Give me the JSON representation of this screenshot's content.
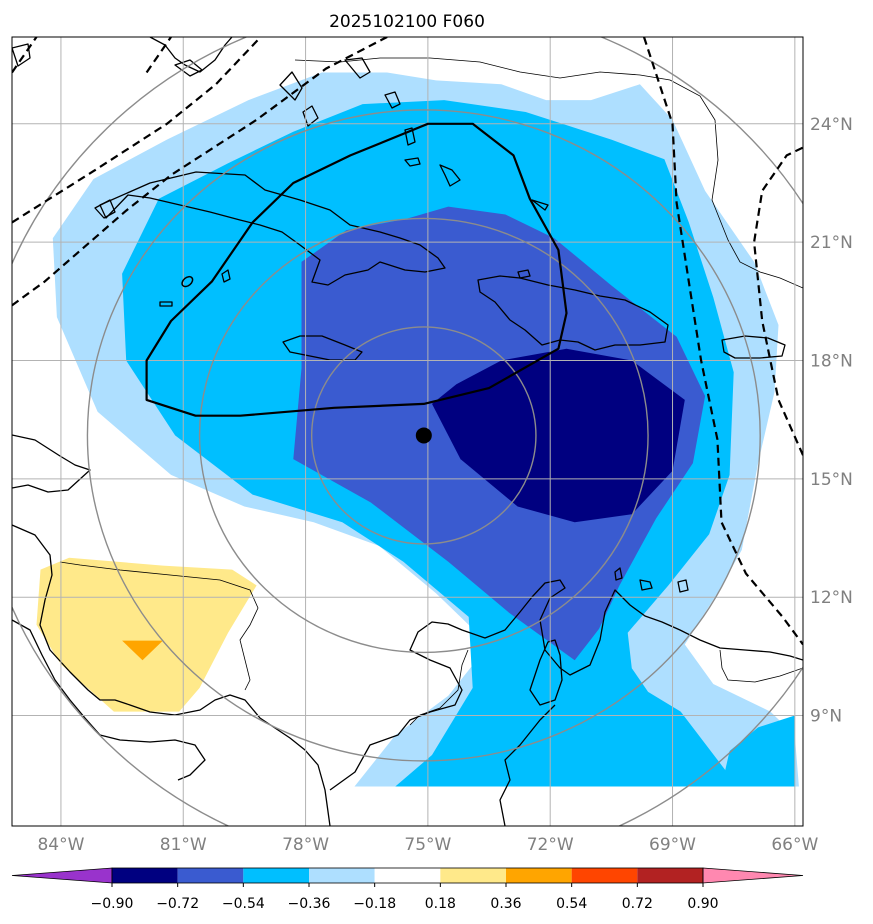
{
  "chart_data": {
    "type": "map-contour",
    "title": "2025102100 F060",
    "projection": "lat-lon",
    "extent": {
      "lon": [
        -85.2,
        -65.8
      ],
      "lat": [
        6.2,
        26.2
      ]
    },
    "grid": true,
    "x_ticks": [
      {
        "value": -84,
        "label": "84°W"
      },
      {
        "value": -81,
        "label": "81°W"
      },
      {
        "value": -78,
        "label": "78°W"
      },
      {
        "value": -75,
        "label": "75°W"
      },
      {
        "value": -72,
        "label": "72°W"
      },
      {
        "value": -69,
        "label": "69°W"
      },
      {
        "value": -66,
        "label": "66°W"
      }
    ],
    "y_ticks": [
      {
        "value": 9,
        "label": "9°N"
      },
      {
        "value": 12,
        "label": "12°N"
      },
      {
        "value": 15,
        "label": "15°N"
      },
      {
        "value": 18,
        "label": "18°N"
      },
      {
        "value": 21,
        "label": "21°N"
      },
      {
        "value": 24,
        "label": "24°N"
      }
    ],
    "center_point": {
      "lon": -75.1,
      "lat": 16.1
    },
    "range_rings": {
      "center": {
        "lon": -75.1,
        "lat": 16.1
      },
      "radii_deg": [
        2.75,
        5.5,
        8.25,
        11.0
      ],
      "color": "#8c8c8c"
    },
    "colorbar": {
      "levels": [
        "-0.90",
        "-0.72",
        "-0.54",
        "-0.36",
        "-0.18",
        "0.18",
        "0.36",
        "0.54",
        "0.72",
        "0.90"
      ],
      "colors": [
        "#9933cc",
        "#000080",
        "#3a5bd0",
        "#00bfff",
        "#aedfff",
        "#ffffff",
        "#ffe98a",
        "#ffa500",
        "#ff4500",
        "#b22222",
        "#ff88b0"
      ],
      "extend": "both"
    },
    "contour_regions": [
      {
        "level": "-0.36 to -0.18",
        "color": "#aedfff",
        "polygon": [
          [
            -76.8,
            7.2
          ],
          [
            -75.8,
            8.5
          ],
          [
            -74.5,
            9.5
          ],
          [
            -73.5,
            10.8
          ],
          [
            -74.8,
            12.1
          ],
          [
            -76.2,
            13.3
          ],
          [
            -77.8,
            13.9
          ],
          [
            -79.5,
            14.3
          ],
          [
            -81.3,
            15.1
          ],
          [
            -83.1,
            16.7
          ],
          [
            -84.1,
            19.1
          ],
          [
            -84.2,
            21.1
          ],
          [
            -83.2,
            22.6
          ],
          [
            -81.4,
            23.6
          ],
          [
            -79.4,
            24.6
          ],
          [
            -77.6,
            25.3
          ],
          [
            -76.0,
            25.3
          ],
          [
            -74.8,
            25.1
          ],
          [
            -73.2,
            25.0
          ],
          [
            -72.1,
            24.6
          ],
          [
            -71.0,
            24.6
          ],
          [
            -69.8,
            25.0
          ],
          [
            -69.0,
            24.1
          ],
          [
            -68.2,
            22.3
          ],
          [
            -67.0,
            20.5
          ],
          [
            -66.4,
            18.9
          ],
          [
            -66.5,
            17.2
          ],
          [
            -66.9,
            15.4
          ],
          [
            -67.3,
            13.2
          ],
          [
            -67.9,
            12.1
          ],
          [
            -68.7,
            10.8
          ],
          [
            -68.0,
            9.8
          ],
          [
            -66.6,
            9.1
          ],
          [
            -66.0,
            8.5
          ],
          [
            -65.9,
            7.2
          ]
        ]
      },
      {
        "level": "-0.54 to -0.36",
        "color": "#00bfff",
        "polygon": [
          [
            -75.8,
            7.2
          ],
          [
            -74.9,
            8.0
          ],
          [
            -73.9,
            9.7
          ],
          [
            -74.0,
            11.5
          ],
          [
            -75.6,
            12.9
          ],
          [
            -77.1,
            13.9
          ],
          [
            -79.3,
            14.6
          ],
          [
            -81.2,
            16.1
          ],
          [
            -82.4,
            18.0
          ],
          [
            -82.5,
            20.2
          ],
          [
            -81.6,
            22.1
          ],
          [
            -79.9,
            23.0
          ],
          [
            -78.3,
            23.8
          ],
          [
            -76.6,
            24.5
          ],
          [
            -74.6,
            24.6
          ],
          [
            -72.6,
            24.3
          ],
          [
            -70.5,
            23.6
          ],
          [
            -69.2,
            23.1
          ],
          [
            -68.6,
            21.5
          ],
          [
            -68.0,
            19.6
          ],
          [
            -67.5,
            17.7
          ],
          [
            -67.6,
            15.1
          ],
          [
            -68.1,
            13.6
          ],
          [
            -69.1,
            12.3
          ],
          [
            -70.1,
            11.1
          ],
          [
            -70.0,
            10.2
          ],
          [
            -69.6,
            9.6
          ],
          [
            -68.8,
            9.1
          ],
          [
            -67.4,
            7.2
          ]
        ]
      },
      {
        "level": "-0.54 to -0.36",
        "color": "#00bfff",
        "polygon": [
          [
            -66.0,
            7.2
          ],
          [
            -66.0,
            9.0
          ],
          [
            -66.9,
            8.7
          ],
          [
            -67.6,
            8.1
          ],
          [
            -67.8,
            7.2
          ]
        ]
      },
      {
        "level": "-0.72 to -0.54",
        "color": "#3a5bd0",
        "polygon": [
          [
            -71.4,
            10.4
          ],
          [
            -73.0,
            11.6
          ],
          [
            -74.5,
            12.9
          ],
          [
            -76.4,
            14.4
          ],
          [
            -78.3,
            15.5
          ],
          [
            -78.1,
            17.8
          ],
          [
            -78.1,
            20.5
          ],
          [
            -77.0,
            21.3
          ],
          [
            -75.5,
            21.6
          ],
          [
            -74.5,
            21.9
          ],
          [
            -73.1,
            21.7
          ],
          [
            -71.9,
            21.1
          ],
          [
            -70.5,
            19.9
          ],
          [
            -68.9,
            18.6
          ],
          [
            -68.2,
            17.1
          ],
          [
            -68.5,
            15.4
          ],
          [
            -69.4,
            14.0
          ],
          [
            -70.3,
            12.3
          ],
          [
            -70.8,
            11.2
          ]
        ]
      },
      {
        "level": "< -0.72",
        "color": "#000080",
        "polygon": [
          [
            -74.9,
            16.9
          ],
          [
            -74.3,
            17.4
          ],
          [
            -73.2,
            18.0
          ],
          [
            -71.6,
            18.3
          ],
          [
            -70.0,
            18.0
          ],
          [
            -68.7,
            17.0
          ],
          [
            -69.0,
            15.2
          ],
          [
            -70.0,
            14.1
          ],
          [
            -71.4,
            13.9
          ],
          [
            -72.8,
            14.3
          ],
          [
            -74.2,
            15.5
          ]
        ]
      },
      {
        "level": "0.18 to 0.36",
        "color": "#ffe98a",
        "polygon": [
          [
            -84.5,
            12.7
          ],
          [
            -83.8,
            13.0
          ],
          [
            -81.5,
            12.8
          ],
          [
            -79.8,
            12.7
          ],
          [
            -79.2,
            12.3
          ],
          [
            -79.9,
            11.1
          ],
          [
            -80.6,
            9.7
          ],
          [
            -81.1,
            9.1
          ],
          [
            -82.7,
            9.1
          ],
          [
            -84.0,
            10.3
          ],
          [
            -84.6,
            11.3
          ]
        ]
      },
      {
        "level": "0.36 to 0.54",
        "color": "#ffa500",
        "polygon": [
          [
            -82.5,
            10.9
          ],
          [
            -81.5,
            10.9
          ],
          [
            -82.0,
            10.4
          ]
        ]
      }
    ],
    "annotations": [
      {
        "type": "solid-outline",
        "color": "#000000",
        "polygon": [
          [
            -75.1,
            16.9
          ],
          [
            -77.3,
            16.8
          ],
          [
            -79.6,
            16.6
          ],
          [
            -80.7,
            16.6
          ],
          [
            -81.9,
            17.0
          ],
          [
            -81.9,
            18.0
          ],
          [
            -81.3,
            19.0
          ],
          [
            -80.3,
            20.0
          ],
          [
            -79.3,
            21.5
          ],
          [
            -78.3,
            22.5
          ],
          [
            -76.9,
            23.2
          ],
          [
            -75.0,
            24.0
          ],
          [
            -73.9,
            24.0
          ],
          [
            -72.9,
            23.2
          ],
          [
            -72.5,
            22.1
          ],
          [
            -71.8,
            20.8
          ],
          [
            -71.6,
            19.2
          ],
          [
            -71.8,
            18.3
          ],
          [
            -73.5,
            17.3
          ],
          [
            -75.1,
            16.9
          ]
        ]
      },
      {
        "type": "dashed-line",
        "color": "#000000",
        "points": [
          [
            -85.2,
            25.3
          ],
          [
            -84.6,
            26.2
          ]
        ]
      },
      {
        "type": "dashed-line",
        "color": "#000000",
        "points": [
          [
            -85.2,
            19.4
          ],
          [
            -84.4,
            20.0
          ],
          [
            -83.4,
            20.9
          ],
          [
            -82.4,
            21.8
          ],
          [
            -81.3,
            22.7
          ],
          [
            -79.2,
            24.1
          ],
          [
            -77.5,
            25.4
          ],
          [
            -76.0,
            26.2
          ]
        ]
      },
      {
        "type": "dashed-line",
        "color": "#000000",
        "points": [
          [
            -85.2,
            21.5
          ],
          [
            -83.2,
            22.8
          ],
          [
            -81.4,
            24.0
          ],
          [
            -80.2,
            25.0
          ],
          [
            -79.1,
            26.2
          ]
        ]
      },
      {
        "type": "dashed-line",
        "color": "#000000",
        "points": [
          [
            -81.9,
            25.3
          ],
          [
            -81.3,
            26.2
          ]
        ]
      },
      {
        "type": "dashed-line",
        "color": "#000000",
        "points": [
          [
            -69.7,
            26.2
          ],
          [
            -69.0,
            24.0
          ],
          [
            -68.9,
            22.0
          ],
          [
            -68.6,
            20.0
          ],
          [
            -68.3,
            18.0
          ],
          [
            -67.9,
            16.0
          ],
          [
            -67.8,
            13.9
          ],
          [
            -67.2,
            12.6
          ],
          [
            -66.3,
            11.5
          ],
          [
            -65.8,
            10.8
          ]
        ]
      },
      {
        "type": "dashed-line",
        "color": "#000000",
        "points": [
          [
            -65.8,
            15.6
          ],
          [
            -66.4,
            17.0
          ],
          [
            -66.8,
            19.0
          ],
          [
            -67.0,
            21.0
          ],
          [
            -66.8,
            22.3
          ],
          [
            -66.2,
            23.2
          ],
          [
            -65.8,
            23.4
          ]
        ]
      }
    ]
  }
}
